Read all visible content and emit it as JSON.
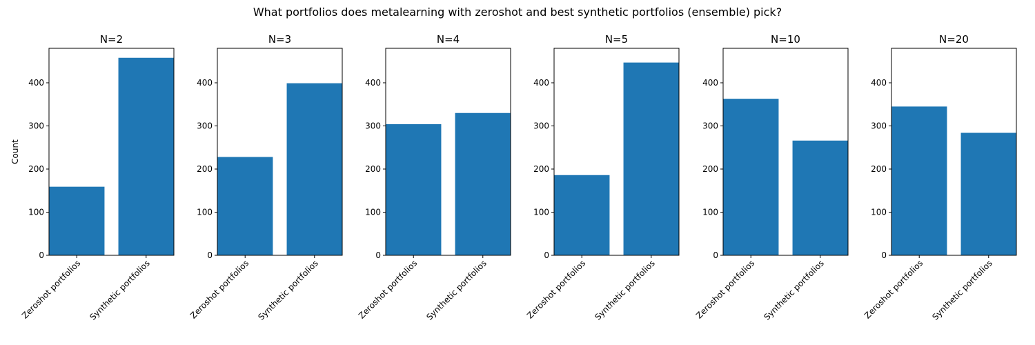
{
  "figure": {
    "title": "What portfolios does metalearning with zeroshot and best synthetic portfolios (ensemble) pick?"
  },
  "colors": {
    "bar": "#1f77b4"
  },
  "chart_data": [
    {
      "type": "bar",
      "title": "N=2",
      "categories": [
        "Zeroshot portfolios",
        "Synthetic portfolios"
      ],
      "values": [
        159,
        458
      ],
      "ylabel": "Count",
      "ylim": [
        0,
        480
      ],
      "yticks": [
        0,
        100,
        200,
        300,
        400
      ]
    },
    {
      "type": "bar",
      "title": "N=3",
      "categories": [
        "Zeroshot portfolios",
        "Synthetic portfolios"
      ],
      "values": [
        228,
        399
      ],
      "ylabel": "",
      "ylim": [
        0,
        480
      ],
      "yticks": [
        0,
        100,
        200,
        300,
        400
      ]
    },
    {
      "type": "bar",
      "title": "N=4",
      "categories": [
        "Zeroshot portfolios",
        "Synthetic portfolios"
      ],
      "values": [
        304,
        330
      ],
      "ylabel": "",
      "ylim": [
        0,
        480
      ],
      "yticks": [
        0,
        100,
        200,
        300,
        400
      ]
    },
    {
      "type": "bar",
      "title": "N=5",
      "categories": [
        "Zeroshot portfolios",
        "Synthetic portfolios"
      ],
      "values": [
        186,
        447
      ],
      "ylabel": "",
      "ylim": [
        0,
        480
      ],
      "yticks": [
        0,
        100,
        200,
        300,
        400
      ]
    },
    {
      "type": "bar",
      "title": "N=10",
      "categories": [
        "Zeroshot portfolios",
        "Synthetic portfolios"
      ],
      "values": [
        363,
        266
      ],
      "ylabel": "",
      "ylim": [
        0,
        480
      ],
      "yticks": [
        0,
        100,
        200,
        300,
        400
      ]
    },
    {
      "type": "bar",
      "title": "N=20",
      "categories": [
        "Zeroshot portfolios",
        "Synthetic portfolios"
      ],
      "values": [
        345,
        284
      ],
      "ylabel": "",
      "ylim": [
        0,
        480
      ],
      "yticks": [
        0,
        100,
        200,
        300,
        400
      ]
    }
  ]
}
